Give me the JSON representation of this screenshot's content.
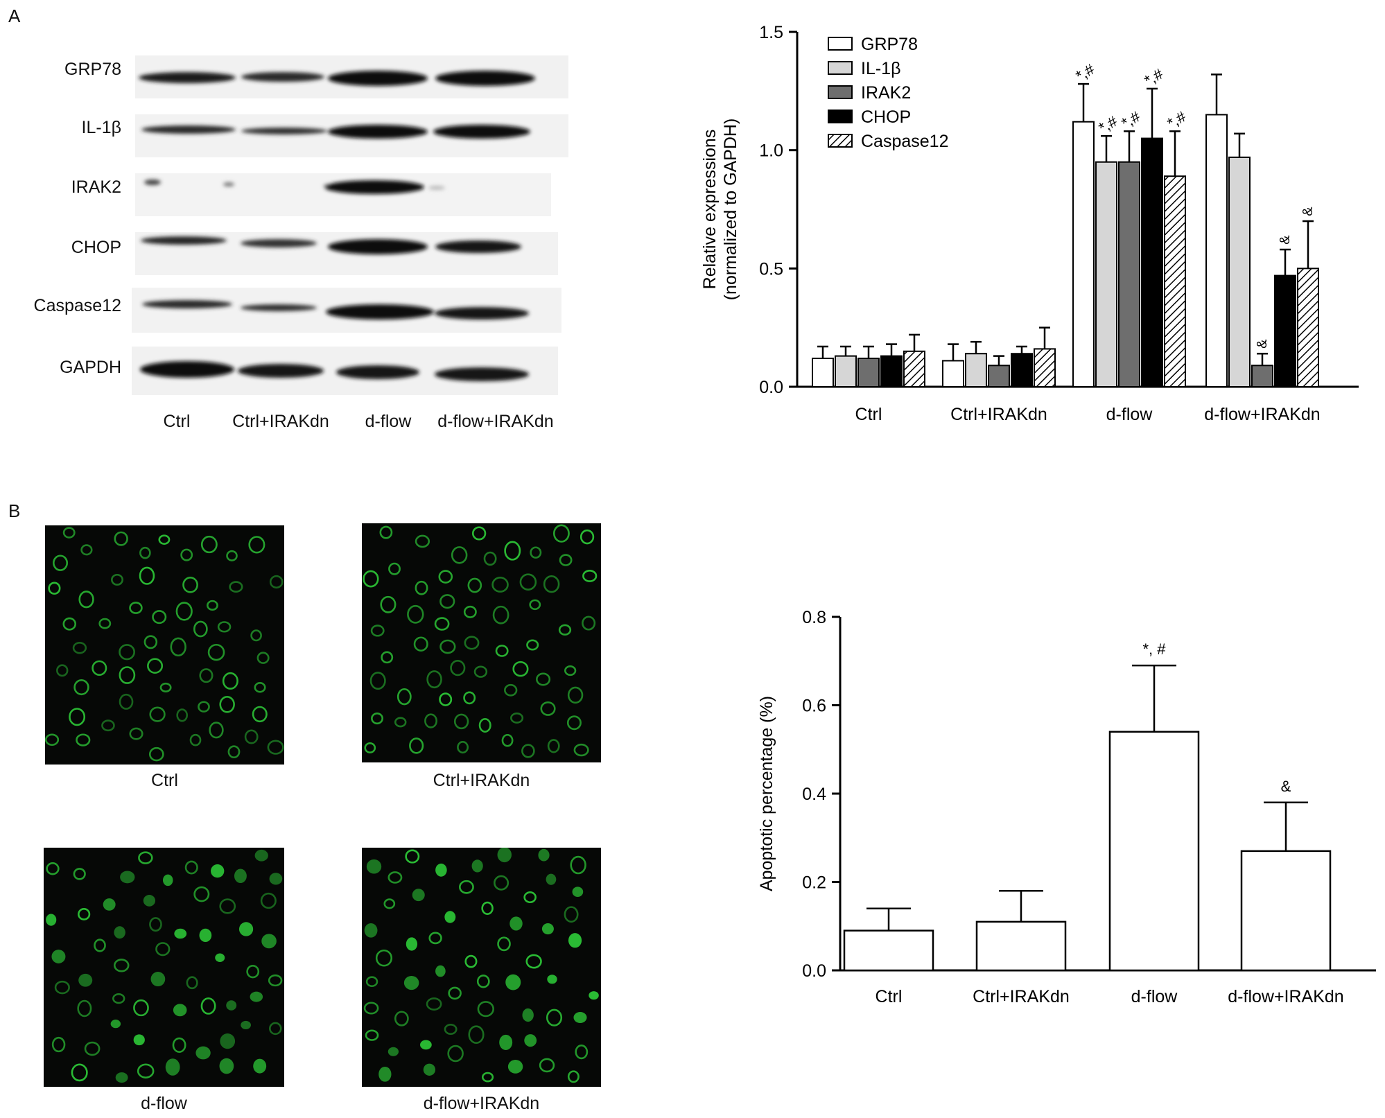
{
  "panels": {
    "a": "A",
    "b": "B"
  },
  "western_blot": {
    "proteins": [
      "GRP78",
      "IL-1β",
      "IRAK2",
      "CHOP",
      "Caspase12",
      "GAPDH"
    ],
    "lanes": [
      "Ctrl",
      "Ctrl+IRAKdn",
      "d-flow",
      "d-flow+IRAKdn"
    ]
  },
  "microscopy": {
    "labels": [
      "Ctrl",
      "Ctrl+IRAKdn",
      "d-flow",
      "d-flow+IRAKdn"
    ],
    "color": "#2fd13a"
  },
  "chart_data": [
    {
      "type": "bar",
      "ylabel_lines": [
        "Relative expressions",
        "(normalized to GAPDH)"
      ],
      "ylim": [
        0,
        1.5
      ],
      "yticks": [
        "0.0",
        "0.5",
        "1.0",
        "1.5"
      ],
      "categories": [
        "Ctrl",
        "Ctrl+IRAKdn",
        "d-flow",
        "d-flow+IRAKdn"
      ],
      "legend_position": "top-left",
      "series": [
        {
          "name": "GRP78",
          "values": [
            0.12,
            0.11,
            1.12,
            1.15
          ],
          "errors": [
            0.05,
            0.07,
            0.16,
            0.17
          ],
          "fill": "#ffffff"
        },
        {
          "name": "IL-1β",
          "values": [
            0.13,
            0.14,
            0.95,
            0.97
          ],
          "errors": [
            0.04,
            0.05,
            0.11,
            0.1
          ],
          "fill": "#d6d6d6"
        },
        {
          "name": "IRAK2",
          "values": [
            0.12,
            0.09,
            0.95,
            0.09
          ],
          "errors": [
            0.05,
            0.04,
            0.13,
            0.05
          ],
          "fill": "#6e6e6e"
        },
        {
          "name": "CHOP",
          "values": [
            0.13,
            0.14,
            1.05,
            0.47
          ],
          "errors": [
            0.05,
            0.03,
            0.21,
            0.11
          ],
          "fill": "#000000"
        },
        {
          "name": "Caspase12",
          "values": [
            0.15,
            0.16,
            0.89,
            0.5
          ],
          "errors": [
            0.07,
            0.09,
            0.19,
            0.2
          ],
          "fill": "hatch"
        }
      ],
      "annotations": [
        {
          "category": 2,
          "series": 0,
          "text": "*,#"
        },
        {
          "category": 2,
          "series": 1,
          "text": "*,#"
        },
        {
          "category": 2,
          "series": 2,
          "text": "*,#"
        },
        {
          "category": 2,
          "series": 3,
          "text": "*,#"
        },
        {
          "category": 2,
          "series": 4,
          "text": "*,#"
        },
        {
          "category": 3,
          "series": 2,
          "text": "&"
        },
        {
          "category": 3,
          "series": 3,
          "text": "&"
        },
        {
          "category": 3,
          "series": 4,
          "text": "&"
        }
      ]
    },
    {
      "type": "bar",
      "ylabel": "Apoptotic percentage (%)",
      "ylim": [
        0,
        0.8
      ],
      "yticks": [
        "0.0",
        "0.2",
        "0.4",
        "0.6",
        "0.8"
      ],
      "categories": [
        "Ctrl",
        "Ctrl+IRAKdn",
        "d-flow",
        "d-flow+IRAKdn"
      ],
      "values": [
        0.09,
        0.11,
        0.54,
        0.27
      ],
      "errors": [
        0.05,
        0.07,
        0.15,
        0.11
      ],
      "annotations": [
        "",
        "",
        "*, #",
        "&"
      ]
    }
  ]
}
